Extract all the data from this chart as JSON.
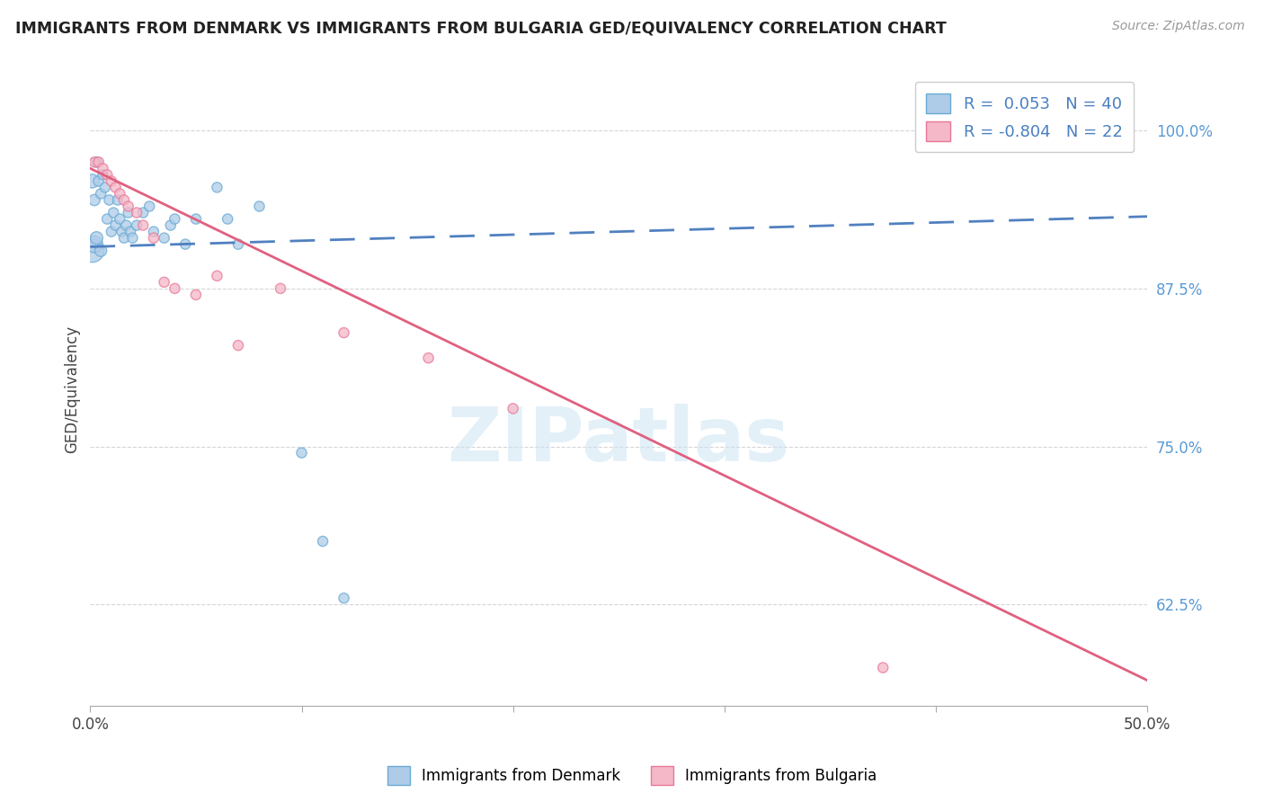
{
  "title": "IMMIGRANTS FROM DENMARK VS IMMIGRANTS FROM BULGARIA GED/EQUIVALENCY CORRELATION CHART",
  "source": "Source: ZipAtlas.com",
  "ylabel": "GED/Equivalency",
  "yticks": [
    0.625,
    0.75,
    0.875,
    1.0
  ],
  "ytick_labels": [
    "62.5%",
    "75.0%",
    "87.5%",
    "100.0%"
  ],
  "xlim": [
    0.0,
    0.5
  ],
  "ylim": [
    0.545,
    1.045
  ],
  "denmark_color": "#aecce8",
  "denmark_edge": "#6aaad4",
  "bulgaria_color": "#f5b8c8",
  "bulgaria_edge": "#e87898",
  "trend_denmark_color": "#5080c0",
  "trend_bulgaria_color": "#e06080",
  "watermark": "ZIPatlas",
  "legend_denmark_R": "0.053",
  "legend_denmark_N": "40",
  "legend_bulgaria_R": "-0.804",
  "legend_bulgaria_N": "22",
  "dk_trend_x": [
    0.0,
    0.5
  ],
  "dk_trend_y": [
    0.908,
    0.932
  ],
  "bg_trend_x": [
    0.0,
    0.5
  ],
  "bg_trend_y": [
    0.97,
    0.565
  ],
  "denmark_x": [
    0.001,
    0.002,
    0.003,
    0.004,
    0.005,
    0.006,
    0.007,
    0.008,
    0.009,
    0.01,
    0.011,
    0.012,
    0.013,
    0.014,
    0.015,
    0.016,
    0.017,
    0.018,
    0.019,
    0.02,
    0.022,
    0.025,
    0.028,
    0.03,
    0.035,
    0.038,
    0.04,
    0.045,
    0.05,
    0.06,
    0.065,
    0.07,
    0.08,
    0.1,
    0.11,
    0.12,
    0.001,
    0.002,
    0.003,
    0.005
  ],
  "denmark_y": [
    0.96,
    0.945,
    0.975,
    0.96,
    0.95,
    0.965,
    0.955,
    0.93,
    0.945,
    0.92,
    0.935,
    0.925,
    0.945,
    0.93,
    0.92,
    0.915,
    0.925,
    0.935,
    0.92,
    0.915,
    0.925,
    0.935,
    0.94,
    0.92,
    0.915,
    0.925,
    0.93,
    0.91,
    0.93,
    0.955,
    0.93,
    0.91,
    0.94,
    0.745,
    0.675,
    0.63,
    0.905,
    0.91,
    0.915,
    0.905
  ],
  "denmark_sizes": [
    120,
    80,
    70,
    70,
    65,
    65,
    65,
    65,
    65,
    65,
    65,
    65,
    65,
    65,
    65,
    65,
    65,
    65,
    65,
    65,
    65,
    65,
    65,
    65,
    65,
    65,
    65,
    65,
    65,
    65,
    65,
    65,
    65,
    65,
    65,
    65,
    350,
    180,
    100,
    90
  ],
  "bulgaria_x": [
    0.002,
    0.004,
    0.006,
    0.008,
    0.01,
    0.012,
    0.014,
    0.016,
    0.018,
    0.022,
    0.025,
    0.03,
    0.035,
    0.04,
    0.05,
    0.06,
    0.07,
    0.09,
    0.12,
    0.16,
    0.2,
    0.375
  ],
  "bulgaria_y": [
    0.975,
    0.975,
    0.97,
    0.965,
    0.96,
    0.955,
    0.95,
    0.945,
    0.94,
    0.935,
    0.925,
    0.915,
    0.88,
    0.875,
    0.87,
    0.885,
    0.83,
    0.875,
    0.84,
    0.82,
    0.78,
    0.575
  ],
  "bulgaria_sizes": [
    65,
    65,
    65,
    65,
    65,
    65,
    65,
    65,
    65,
    65,
    65,
    65,
    65,
    65,
    65,
    65,
    65,
    65,
    65,
    65,
    65,
    65
  ]
}
